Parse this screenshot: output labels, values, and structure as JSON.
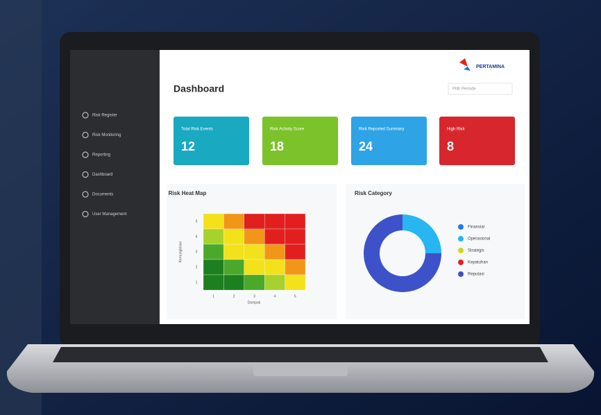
{
  "header": {
    "logo": "PERTAMINA",
    "title": "Dashboard",
    "filter": "Pilih Periode"
  },
  "sidebar": {
    "items": [
      "Risk Register",
      "Risk Monitoring",
      "Reporting",
      "Dashboard",
      "Documents",
      "User Management"
    ]
  },
  "cards": [
    {
      "label": "Total Risk Events",
      "value": 12,
      "color": "#19a9c0"
    },
    {
      "label": "Risk Activity Score",
      "value": 18,
      "color": "#7cc22b"
    },
    {
      "label": "Risk Reported Summary",
      "value": 24,
      "color": "#2ea3e6"
    },
    {
      "label": "High Risk",
      "value": 8,
      "color": "#d8262e"
    }
  ],
  "heatmap": {
    "title": "Risk Heat Map",
    "x_label": "Dampak",
    "y_label": "Kemungkinan",
    "x_ticks": [
      1,
      2,
      3,
      4,
      5
    ],
    "y_ticks": [
      5,
      4,
      3,
      2,
      1
    ],
    "levels": [
      [
        4,
        5,
        6,
        6,
        6
      ],
      [
        3,
        4,
        5,
        6,
        6
      ],
      [
        2,
        4,
        4,
        5,
        6
      ],
      [
        1,
        2,
        4,
        4,
        5
      ],
      [
        1,
        1,
        2,
        3,
        4
      ]
    ],
    "colors": [
      "#1d7f1f",
      "#4aa92a",
      "#a7d12d",
      "#f3e11c",
      "#f2961a",
      "#e21f1f"
    ]
  },
  "category": {
    "title": "Risk Category",
    "series": [
      {
        "name": "Finansial",
        "color": "#1f7ae8",
        "value": 0
      },
      {
        "name": "Operasional",
        "color": "#27b6f0",
        "value": 25
      },
      {
        "name": "Strategis",
        "color": "#c9d81e",
        "value": 0
      },
      {
        "name": "Kepatuhan",
        "color": "#e3201f",
        "value": 0
      },
      {
        "name": "Reputasi",
        "color": "#3d52c9",
        "value": 75
      }
    ]
  }
}
